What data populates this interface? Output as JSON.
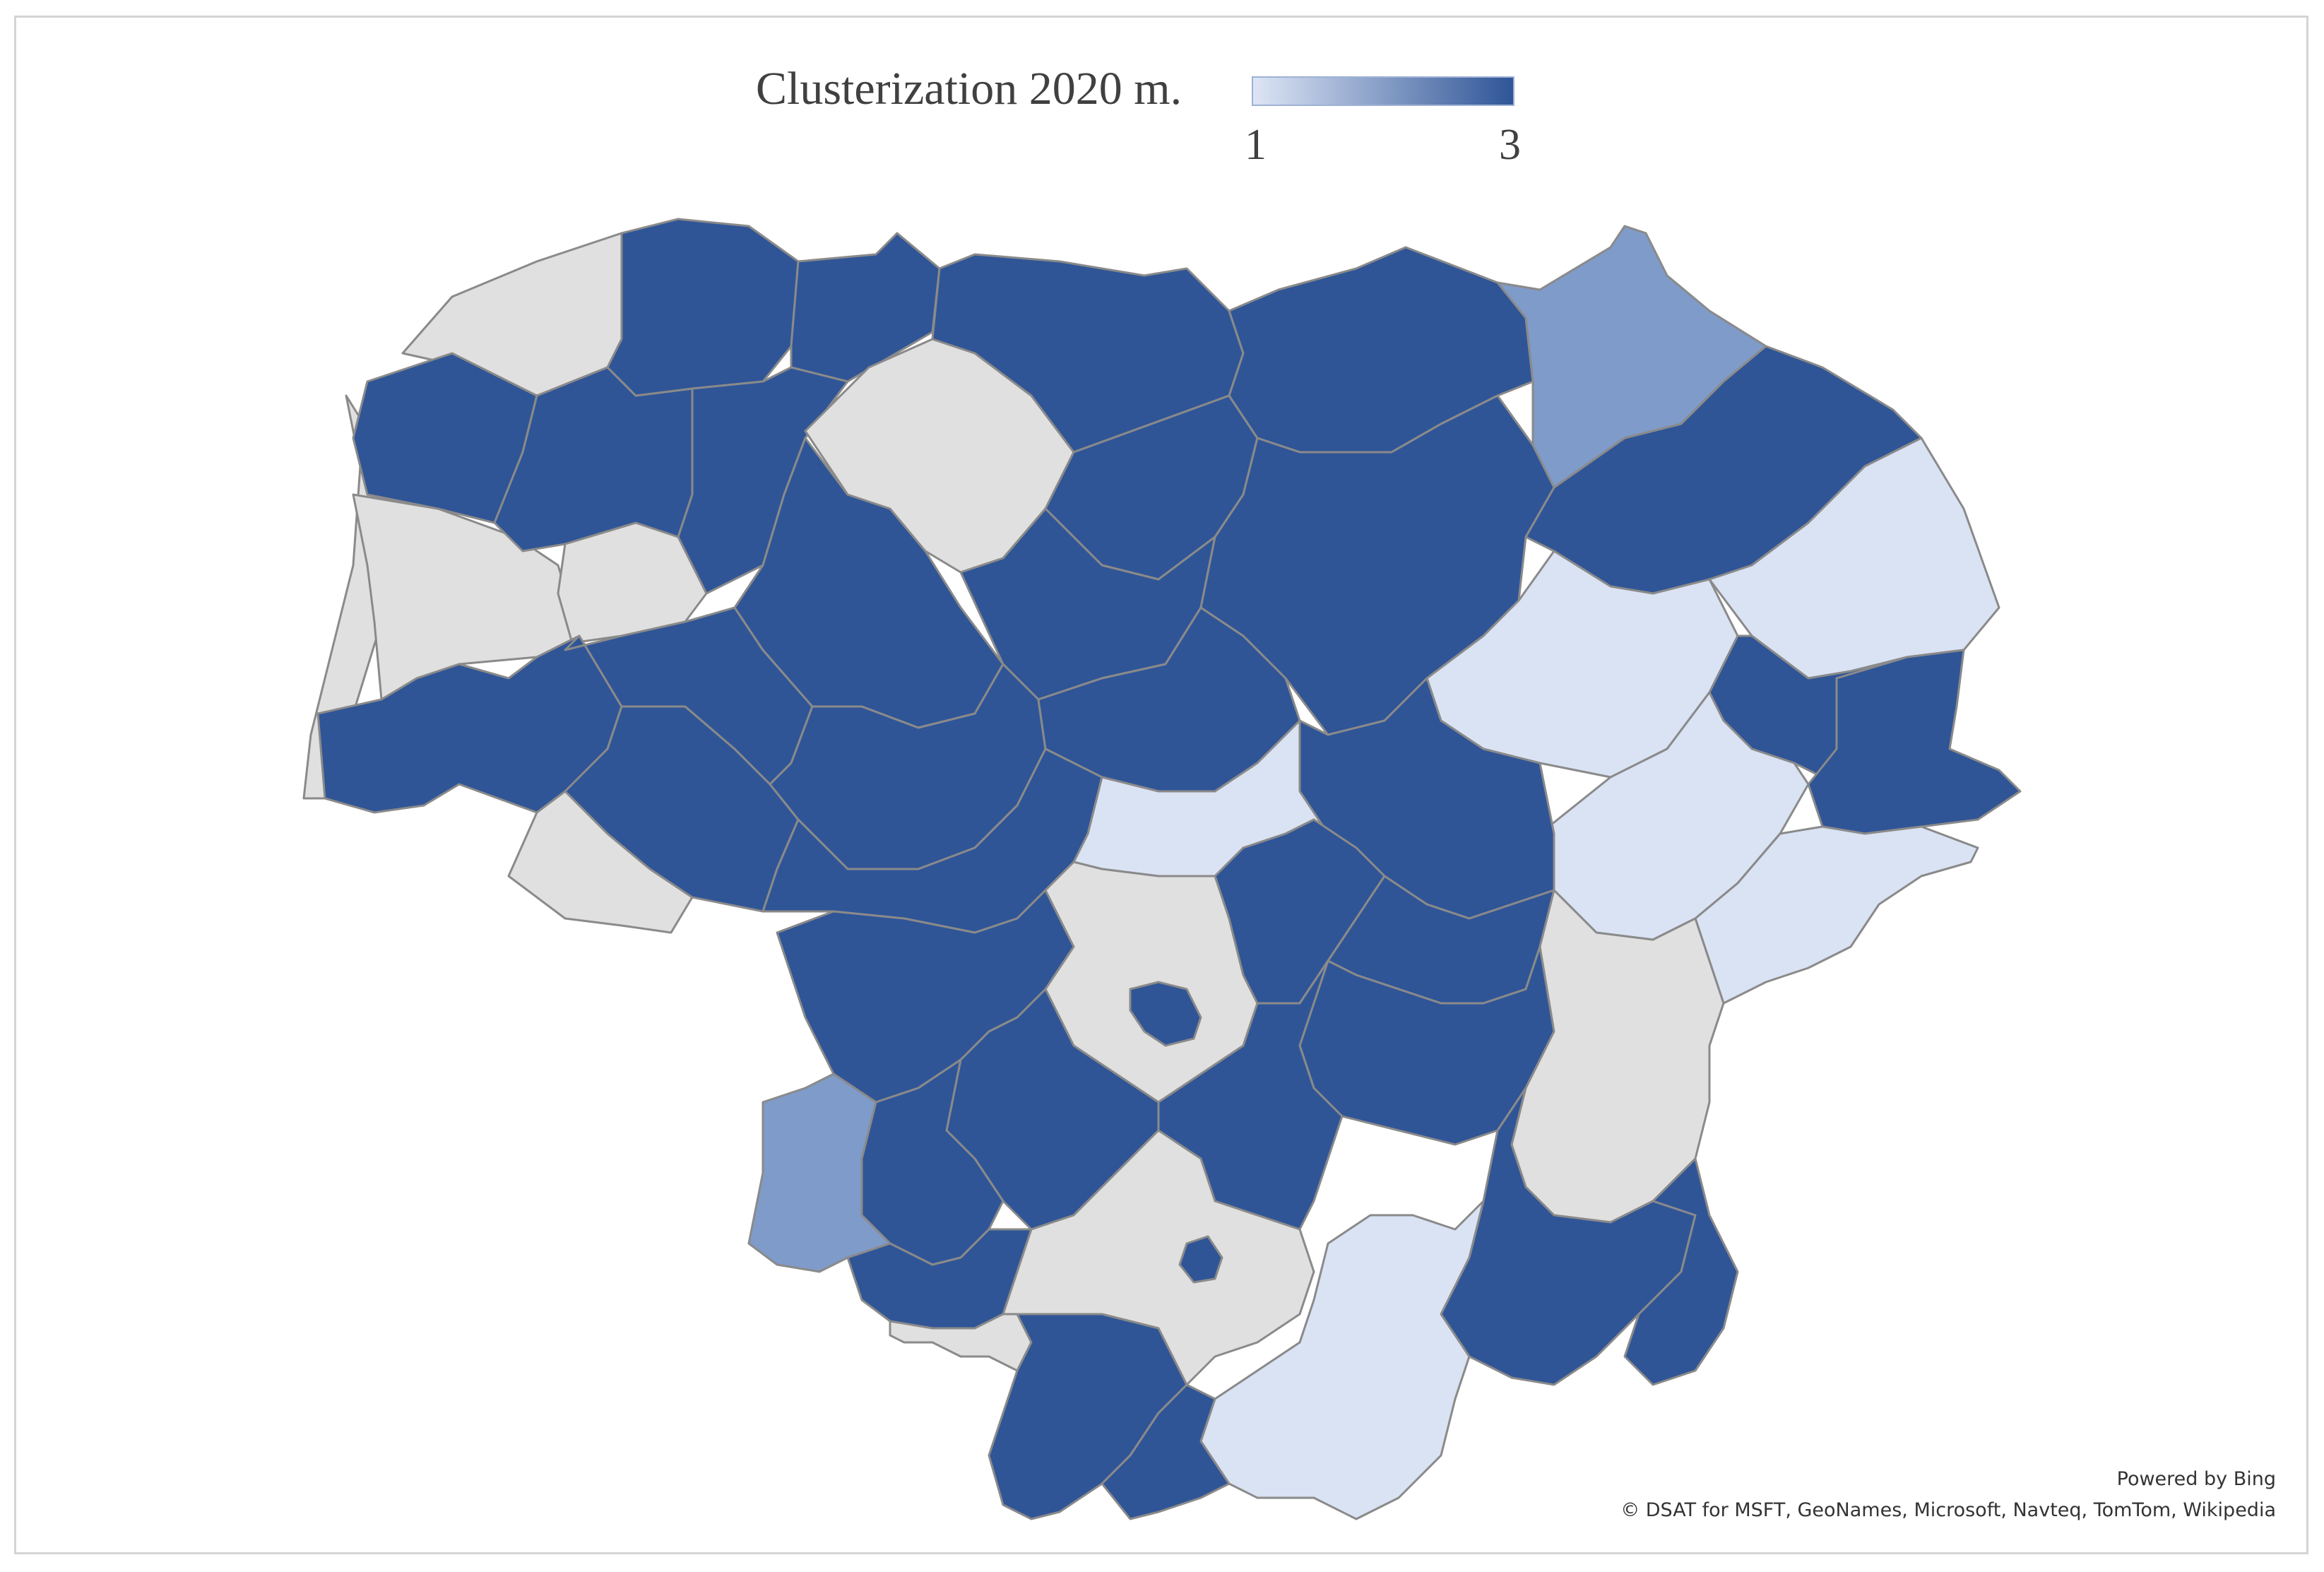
{
  "legend": {
    "title": "Clusterization 2020 m.",
    "min_label": "1",
    "max_label": "3"
  },
  "attribution": {
    "powered_by": "Powered by Bing",
    "copyright": "© DSAT for MSFT, GeoNames, Microsoft, Navteq, TomTom, Wikipedia"
  },
  "colors": {
    "cluster_1": "#dae3f4",
    "cluster_2": "#7f9bc9",
    "cluster_3": "#2f5597",
    "no_data": "#e0e0e0",
    "border": "#8a8a8a",
    "legend_low": "#dde5f5",
    "legend_high": "#2f5597"
  }
}
